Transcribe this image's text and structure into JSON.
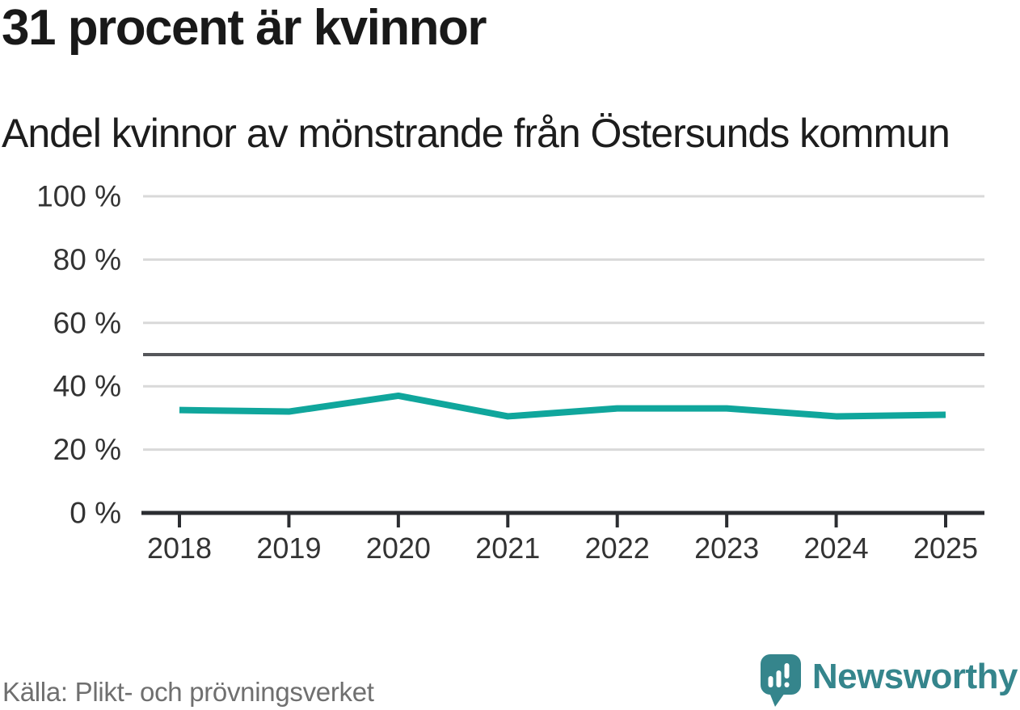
{
  "title": "31 procent är kvinnor",
  "subtitle": "Andel kvinnor av mönstrande från Östersunds kommun",
  "source": "Källa: Plikt- och prövningsverket",
  "brand": {
    "name": "Newsworthy",
    "logo_icon": "newsworthy-pin-barchart-icon"
  },
  "colors": {
    "line": "#10a69c",
    "grid": "#d9d9d9",
    "reference_line": "#55565a",
    "axis": "#2b2d31",
    "title_text": "#191919",
    "tick_text": "#333333",
    "source_text": "#6f6f6f",
    "brand_teal": "#35858c"
  },
  "chart_data": {
    "type": "line",
    "title": "31 procent är kvinnor",
    "subtitle": "Andel kvinnor av mönstrande från Östersunds kommun",
    "x": [
      "2018",
      "2019",
      "2020",
      "2021",
      "2022",
      "2023",
      "2024",
      "2025"
    ],
    "series": [
      {
        "name": "Andel kvinnor av mönstrande",
        "values": [
          32.5,
          32,
          37,
          30.5,
          33,
          33,
          30.5,
          31
        ]
      }
    ],
    "ylim": [
      0,
      100
    ],
    "yticks": [
      {
        "value": 0,
        "label": "0 %"
      },
      {
        "value": 20,
        "label": "20 %"
      },
      {
        "value": 40,
        "label": "40 %"
      },
      {
        "value": 60,
        "label": "60 %"
      },
      {
        "value": 80,
        "label": "80 %"
      },
      {
        "value": 100,
        "label": "100 %"
      }
    ],
    "reference_line": {
      "value": 50
    },
    "grid": true,
    "legend": false
  }
}
